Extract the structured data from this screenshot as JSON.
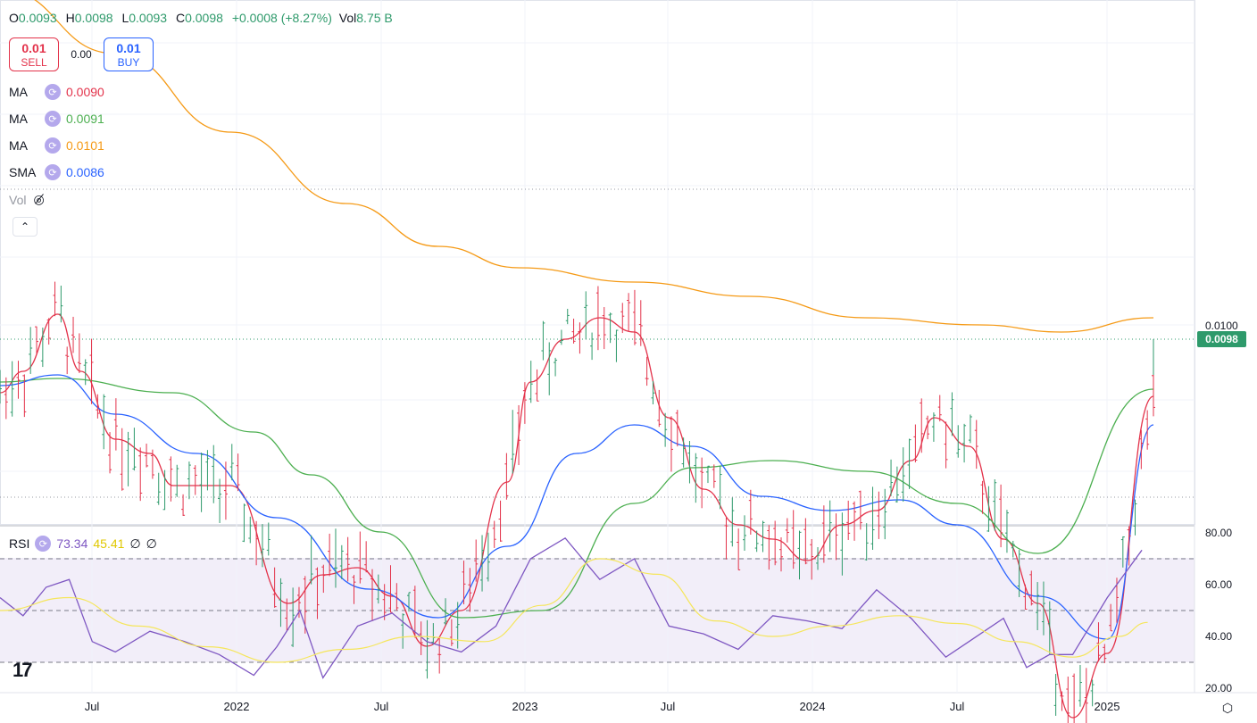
{
  "ohlc": {
    "o_label": "O",
    "o": "0.0093",
    "h_label": "H",
    "h": "0.0098",
    "l_label": "L",
    "l": "0.0093",
    "c_label": "C",
    "c": "0.0098",
    "change": "+0.0008 (+8.27%)",
    "vol_label": "Vol",
    "vol": "8.75 B"
  },
  "trade": {
    "sell_price": "0.01",
    "sell_label": "SELL",
    "spread": "0.00",
    "buy_price": "0.01",
    "buy_label": "BUY"
  },
  "indicators": [
    {
      "name": "MA",
      "value": "0.0090",
      "color": "#e3324a"
    },
    {
      "name": "MA",
      "value": "0.0091",
      "color": "#4caf50"
    },
    {
      "name": "MA",
      "value": "0.0101",
      "color": "#f59a16"
    },
    {
      "name": "SMA",
      "value": "0.0086",
      "color": "#2962ff"
    }
  ],
  "volume_label": "Vol",
  "rsi": {
    "name": "RSI",
    "value": "73.34",
    "ma_value": "45.41",
    "extra1": "∅",
    "extra2": "∅",
    "line_color": "#7e57c2",
    "ma_color": "#f5e65c"
  },
  "price_axis": {
    "label_0100": "0.0100",
    "current": "0.0098",
    "current_color": "#2e9a6b"
  },
  "rsi_axis": [
    "80.00",
    "60.00",
    "40.00",
    "20.00"
  ],
  "time_axis": [
    "Jul",
    "2022",
    "Jul",
    "2023",
    "Jul",
    "2024",
    "Jul",
    "2025"
  ],
  "chart_data": [
    {
      "type": "ohlc-bar",
      "price_scale": {
        "tick": 0.01,
        "ref_price": 0.01,
        "ref_price_label": "0.0100",
        "last_price": 0.0098
      },
      "series": [
        {
          "name": "MA",
          "color": "#e3324a",
          "values": [
            [
              0.0,
              0.00905
            ],
            [
              0.02,
              0.00935
            ],
            [
              0.05,
              0.01015
            ],
            [
              0.07,
              0.00935
            ],
            [
              0.1,
              0.0084
            ],
            [
              0.13,
              0.0082
            ],
            [
              0.15,
              0.00775
            ],
            [
              0.2,
              0.00775
            ],
            [
              0.25,
              0.0061
            ],
            [
              0.28,
              0.0065
            ],
            [
              0.31,
              0.0066
            ],
            [
              0.34,
              0.0062
            ],
            [
              0.37,
              0.0055
            ],
            [
              0.4,
              0.006
            ],
            [
              0.44,
              0.0078
            ],
            [
              0.46,
              0.0092
            ],
            [
              0.49,
              0.0098
            ],
            [
              0.52,
              0.0101
            ],
            [
              0.55,
              0.0099
            ],
            [
              0.58,
              0.0087
            ],
            [
              0.61,
              0.0077
            ],
            [
              0.64,
              0.0072
            ],
            [
              0.67,
              0.007
            ],
            [
              0.7,
              0.0067
            ],
            [
              0.73,
              0.0072
            ],
            [
              0.76,
              0.0074
            ],
            [
              0.79,
              0.0081
            ],
            [
              0.81,
              0.0087
            ],
            [
              0.84,
              0.0083
            ],
            [
              0.87,
              0.007
            ],
            [
              0.9,
              0.0061
            ],
            [
              0.93,
              0.0045
            ],
            [
              0.96,
              0.0054
            ],
            [
              1.0,
              0.009
            ]
          ]
        },
        {
          "name": "MA",
          "color": "#4caf50",
          "values": [
            [
              0.0,
              0.0092
            ],
            [
              0.05,
              0.00925
            ],
            [
              0.15,
              0.00905
            ],
            [
              0.22,
              0.0085
            ],
            [
              0.27,
              0.0079
            ],
            [
              0.33,
              0.0071
            ],
            [
              0.4,
              0.0059
            ],
            [
              0.47,
              0.006
            ],
            [
              0.55,
              0.0075
            ],
            [
              0.6,
              0.008
            ],
            [
              0.67,
              0.0081
            ],
            [
              0.75,
              0.00795
            ],
            [
              0.83,
              0.0075
            ],
            [
              0.9,
              0.0068
            ],
            [
              1.0,
              0.0091
            ]
          ]
        },
        {
          "name": "MA",
          "color": "#f59a16",
          "values": [
            [
              0.0,
              0.0147
            ],
            [
              0.1,
              0.0138
            ],
            [
              0.2,
              0.0127
            ],
            [
              0.3,
              0.0117
            ],
            [
              0.38,
              0.0111
            ],
            [
              0.45,
              0.0108
            ],
            [
              0.55,
              0.0106
            ],
            [
              0.65,
              0.0104
            ],
            [
              0.75,
              0.0101
            ],
            [
              0.85,
              0.01
            ],
            [
              0.92,
              0.0099
            ],
            [
              1.0,
              0.0101
            ]
          ]
        },
        {
          "name": "SMA",
          "color": "#2962ff",
          "values": [
            [
              0.0,
              0.00915
            ],
            [
              0.05,
              0.0093
            ],
            [
              0.1,
              0.00875
            ],
            [
              0.17,
              0.0082
            ],
            [
              0.24,
              0.0073
            ],
            [
              0.32,
              0.0063
            ],
            [
              0.38,
              0.0059
            ],
            [
              0.44,
              0.0069
            ],
            [
              0.5,
              0.0082
            ],
            [
              0.55,
              0.0086
            ],
            [
              0.6,
              0.0083
            ],
            [
              0.66,
              0.0076
            ],
            [
              0.72,
              0.0074
            ],
            [
              0.78,
              0.00755
            ],
            [
              0.83,
              0.0072
            ],
            [
              0.9,
              0.0062
            ],
            [
              0.96,
              0.0056
            ],
            [
              1.0,
              0.0086
            ]
          ]
        }
      ],
      "time_axis": [
        "Jul",
        "2022",
        "Jul",
        "2023",
        "Jul",
        "2024",
        "Jul",
        "2025"
      ]
    },
    {
      "type": "line",
      "title": "RSI",
      "ylim": [
        20,
        80
      ],
      "levels": [
        70,
        50,
        30
      ],
      "series": [
        {
          "name": "RSI",
          "color": "#7e57c2",
          "values": [
            [
              0.0,
              55
            ],
            [
              0.02,
              48
            ],
            [
              0.04,
              59
            ],
            [
              0.06,
              62
            ],
            [
              0.08,
              38
            ],
            [
              0.1,
              34
            ],
            [
              0.13,
              42
            ],
            [
              0.16,
              38
            ],
            [
              0.19,
              33
            ],
            [
              0.22,
              25
            ],
            [
              0.24,
              36
            ],
            [
              0.26,
              50
            ],
            [
              0.28,
              24
            ],
            [
              0.31,
              44
            ],
            [
              0.34,
              49
            ],
            [
              0.37,
              38
            ],
            [
              0.4,
              34
            ],
            [
              0.43,
              44
            ],
            [
              0.46,
              70
            ],
            [
              0.49,
              78
            ],
            [
              0.52,
              62
            ],
            [
              0.55,
              70
            ],
            [
              0.58,
              44
            ],
            [
              0.61,
              41
            ],
            [
              0.64,
              35
            ],
            [
              0.67,
              48
            ],
            [
              0.7,
              46
            ],
            [
              0.73,
              43
            ],
            [
              0.76,
              58
            ],
            [
              0.79,
              47
            ],
            [
              0.82,
              32
            ],
            [
              0.84,
              38
            ],
            [
              0.87,
              47
            ],
            [
              0.89,
              28
            ],
            [
              0.91,
              33
            ],
            [
              0.93,
              33
            ],
            [
              0.96,
              55
            ],
            [
              0.99,
              73.34
            ]
          ]
        },
        {
          "name": "RSI MA",
          "color": "#f5e65c",
          "values": [
            [
              0.0,
              50
            ],
            [
              0.06,
              55
            ],
            [
              0.12,
              44
            ],
            [
              0.18,
              36
            ],
            [
              0.24,
              30
            ],
            [
              0.3,
              35
            ],
            [
              0.36,
              40
            ],
            [
              0.42,
              38
            ],
            [
              0.47,
              52
            ],
            [
              0.52,
              70
            ],
            [
              0.57,
              64
            ],
            [
              0.62,
              46
            ],
            [
              0.67,
              40
            ],
            [
              0.72,
              44
            ],
            [
              0.78,
              48
            ],
            [
              0.83,
              45
            ],
            [
              0.88,
              38
            ],
            [
              0.93,
              32
            ],
            [
              0.97,
              40
            ],
            [
              0.995,
              45.41
            ]
          ]
        }
      ]
    }
  ]
}
